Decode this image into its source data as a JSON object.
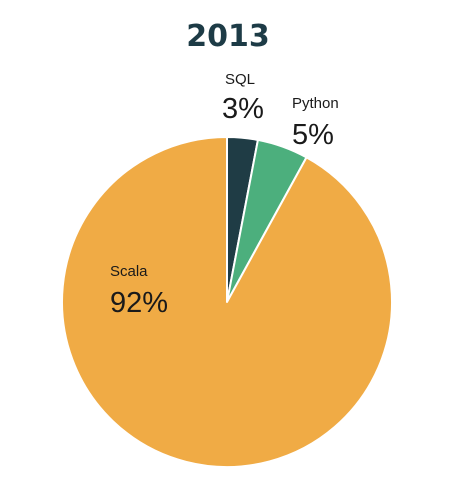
{
  "chart_data": {
    "type": "pie",
    "title": "2013",
    "slices": [
      {
        "label": "SQL",
        "value": 3,
        "value_label": "3%",
        "color": "#1f3c45"
      },
      {
        "label": "Python",
        "value": 5,
        "value_label": "5%",
        "color": "#4caf7d"
      },
      {
        "label": "Scala",
        "value": 92,
        "value_label": "92%",
        "color": "#f0ab45"
      }
    ],
    "title_color": "#1d3b46",
    "label_color": "#1a1a1a",
    "slice_border_color": "#ffffff"
  }
}
